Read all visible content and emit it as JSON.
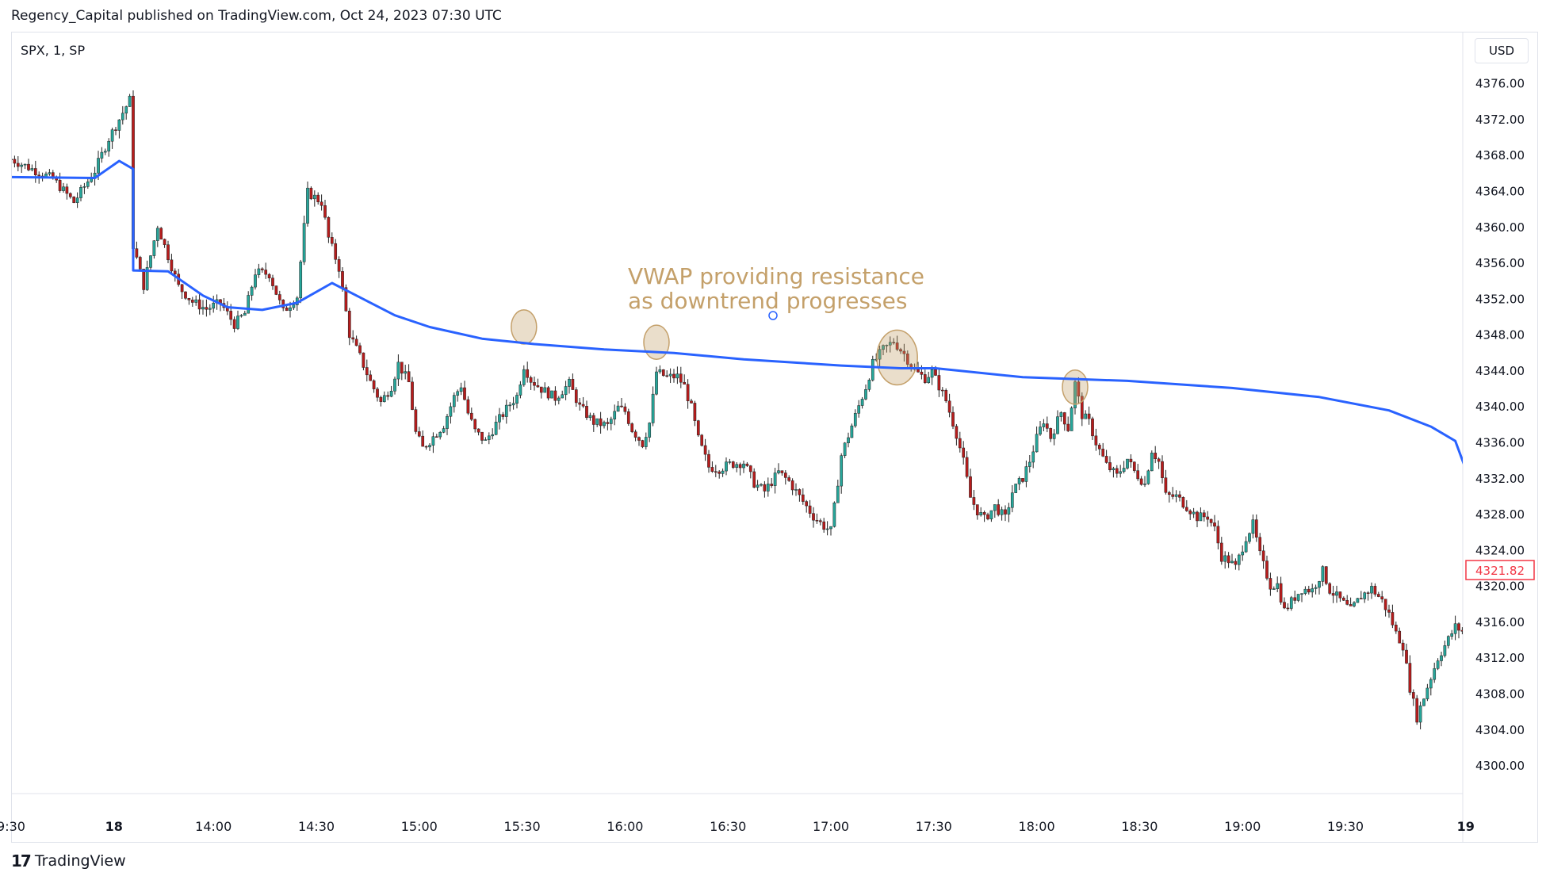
{
  "header": {
    "publisher_line": "Regency_Capital published on TradingView.com, Oct 24, 2023 07:30 UTC"
  },
  "symbol": "SPX, 1, SP",
  "currency": "USD",
  "footer": {
    "brand": "TradingView",
    "logo_icon": "tradingview-logo-icon"
  },
  "chart_data": {
    "type": "candlestick",
    "title": "",
    "price_ticks": [
      4376,
      4372,
      4368,
      4364,
      4360,
      4356,
      4352,
      4348,
      4344,
      4340,
      4336,
      4332,
      4328,
      4324,
      4320,
      4316,
      4312,
      4308,
      4304,
      4300
    ],
    "price_tick_labels": [
      "4376.00",
      "4372.00",
      "4368.00",
      "4364.00",
      "4360.00",
      "4356.00",
      "4352.00",
      "4348.00",
      "4344.00",
      "4340.00",
      "4336.00",
      "4332.00",
      "4328.00",
      "4324.00",
      "4320.00",
      "4316.00",
      "4312.00",
      "4308.00",
      "4304.00",
      "4300.00"
    ],
    "ylim": [
      4297.0,
      4381.8
    ],
    "time_ticks": [
      "9:30",
      "18",
      "14:00",
      "14:30",
      "15:00",
      "15:30",
      "16:00",
      "16:30",
      "17:00",
      "17:30",
      "18:00",
      "18:30",
      "19:00",
      "19:30",
      "19"
    ],
    "time_tick_slots": [
      0,
      29.5,
      58,
      87.5,
      117,
      146.5,
      176,
      205.5,
      235,
      264.5,
      294,
      323.5,
      353,
      382.5,
      417
    ],
    "last_price": 4321.82,
    "last_price_label": "4321.82",
    "colors": {
      "up": "#26a69a",
      "down": "#b71c1c",
      "vwap": "#2962ff",
      "annotation": "#c4a06a",
      "last_price": "#f23645"
    },
    "annotation": {
      "line1": "VWAP providing resistance",
      "line2": "as downtrend progresses"
    },
    "highlight_slots": [
      {
        "slot": 147,
        "price": 4348.9,
        "r": 1.0
      },
      {
        "slot": 185,
        "price": 4347.2,
        "r": 1.0
      },
      {
        "slot": 254,
        "price": 4345.5,
        "r": 1.6
      },
      {
        "slot": 305,
        "price": 4342.2,
        "r": 1.0
      }
    ],
    "vwap_path": [
      [
        0,
        4365.6
      ],
      [
        24,
        4365.5
      ],
      [
        31,
        4367.4
      ],
      [
        35,
        4366.5
      ],
      [
        35,
        4355.2
      ],
      [
        45,
        4355.1
      ],
      [
        55,
        4352.4
      ],
      [
        62,
        4351.1
      ],
      [
        72,
        4350.8
      ],
      [
        82,
        4351.6
      ],
      [
        92,
        4353.8
      ],
      [
        100,
        4352.2
      ],
      [
        110,
        4350.2
      ],
      [
        120,
        4348.9
      ],
      [
        135,
        4347.6
      ],
      [
        150,
        4347.0
      ],
      [
        170,
        4346.4
      ],
      [
        190,
        4346.0
      ],
      [
        210,
        4345.3
      ],
      [
        238,
        4344.6
      ],
      [
        255,
        4344.3
      ],
      [
        265,
        4344.3
      ],
      [
        290,
        4343.3
      ],
      [
        320,
        4342.9
      ],
      [
        350,
        4342.1
      ],
      [
        375,
        4341.1
      ],
      [
        395,
        4339.6
      ],
      [
        407,
        4337.8
      ],
      [
        414,
        4336.2
      ],
      [
        418,
        4332.0
      ],
      [
        419,
        4331.8
      ],
      [
        420,
        4321.0
      ],
      [
        423,
        4323.2
      ],
      [
        427,
        4323.0
      ]
    ],
    "price_path": [
      [
        0,
        4367.6
      ],
      [
        12,
        4365.4
      ],
      [
        18,
        4362.8
      ],
      [
        24,
        4366.3
      ],
      [
        28,
        4369.9
      ],
      [
        34,
        4374.2
      ],
      [
        35,
        4358.0
      ],
      [
        38,
        4353.5
      ],
      [
        42,
        4360.2
      ],
      [
        48,
        4353.4
      ],
      [
        52,
        4351.7
      ],
      [
        56,
        4350.9
      ],
      [
        60,
        4351.6
      ],
      [
        64,
        4349.2
      ],
      [
        67,
        4350.4
      ],
      [
        70,
        4355.0
      ],
      [
        74,
        4354.8
      ],
      [
        78,
        4350.6
      ],
      [
        82,
        4352.3
      ],
      [
        85,
        4363.9
      ],
      [
        89,
        4362.8
      ],
      [
        91,
        4358.8
      ],
      [
        94,
        4355.5
      ],
      [
        97,
        4348.1
      ],
      [
        100,
        4345.6
      ],
      [
        103,
        4342.8
      ],
      [
        106,
        4340.5
      ],
      [
        109,
        4342.3
      ],
      [
        111,
        4344.8
      ],
      [
        114,
        4342.7
      ],
      [
        116,
        4337.1
      ],
      [
        118,
        4335.4
      ],
      [
        120,
        4336.2
      ],
      [
        124,
        4338.0
      ],
      [
        127,
        4341.1
      ],
      [
        129,
        4342.4
      ],
      [
        131,
        4339.3
      ],
      [
        133,
        4337.3
      ],
      [
        136,
        4336.1
      ],
      [
        139,
        4338.1
      ],
      [
        143,
        4340.3
      ],
      [
        145,
        4341.2
      ],
      [
        147,
        4344.6
      ],
      [
        149,
        4343.0
      ],
      [
        152,
        4342.0
      ],
      [
        156,
        4341.0
      ],
      [
        160,
        4342.6
      ],
      [
        163,
        4340.0
      ],
      [
        167,
        4338.3
      ],
      [
        171,
        4337.9
      ],
      [
        174,
        4339.9
      ],
      [
        176,
        4339.5
      ],
      [
        178,
        4337.5
      ],
      [
        181,
        4335.9
      ],
      [
        183,
        4338.2
      ],
      [
        185,
        4343.9
      ],
      [
        188,
        4343.3
      ],
      [
        191,
        4343.4
      ],
      [
        193,
        4342.3
      ],
      [
        195,
        4339.9
      ],
      [
        197,
        4336.4
      ],
      [
        200,
        4333.3
      ],
      [
        203,
        4333.1
      ],
      [
        206,
        4333.6
      ],
      [
        210,
        4333.8
      ],
      [
        213,
        4331.5
      ],
      [
        216,
        4330.6
      ],
      [
        220,
        4332.7
      ],
      [
        223,
        4331.7
      ],
      [
        226,
        4330.0
      ],
      [
        230,
        4327.8
      ],
      [
        233,
        4326.7
      ],
      [
        235,
        4326.2
      ],
      [
        236,
        4328.8
      ],
      [
        238,
        4334.6
      ],
      [
        241,
        4337.9
      ],
      [
        243,
        4340.1
      ],
      [
        245,
        4342.2
      ],
      [
        247,
        4344.8
      ],
      [
        250,
        4346.4
      ],
      [
        253,
        4347.3
      ],
      [
        256,
        4345.9
      ],
      [
        259,
        4344.0
      ],
      [
        262,
        4343.2
      ],
      [
        264,
        4343.9
      ],
      [
        266,
        4342.3
      ],
      [
        268,
        4340.7
      ],
      [
        271,
        4337.0
      ],
      [
        273,
        4333.9
      ],
      [
        275,
        4329.9
      ],
      [
        277,
        4328.4
      ],
      [
        279,
        4327.5
      ],
      [
        282,
        4328.9
      ],
      [
        285,
        4327.6
      ],
      [
        287,
        4330.5
      ],
      [
        290,
        4332.1
      ],
      [
        292,
        4334.0
      ],
      [
        294,
        4336.5
      ],
      [
        296,
        4338.5
      ],
      [
        298,
        4336.6
      ],
      [
        301,
        4339.4
      ],
      [
        303,
        4337.6
      ],
      [
        305,
        4342.6
      ],
      [
        307,
        4339.1
      ],
      [
        309,
        4338.3
      ],
      [
        311,
        4336.0
      ],
      [
        314,
        4333.5
      ],
      [
        317,
        4332.3
      ],
      [
        320,
        4334.2
      ],
      [
        322,
        4332.8
      ],
      [
        325,
        4331.4
      ],
      [
        327,
        4335.2
      ],
      [
        329,
        4333.9
      ],
      [
        331,
        4330.1
      ],
      [
        334,
        4330.0
      ],
      [
        337,
        4328.9
      ],
      [
        340,
        4327.7
      ],
      [
        343,
        4327.8
      ],
      [
        345,
        4326.4
      ],
      [
        347,
        4323.3
      ],
      [
        349,
        4322.9
      ],
      [
        351,
        4322.1
      ],
      [
        354,
        4325.5
      ],
      [
        356,
        4326.9
      ],
      [
        358,
        4323.5
      ],
      [
        361,
        4320.1
      ],
      [
        363,
        4320.2
      ],
      [
        365,
        4317.3
      ],
      [
        368,
        4318.8
      ],
      [
        370,
        4319.7
      ],
      [
        373,
        4319.6
      ],
      [
        376,
        4321.7
      ],
      [
        378,
        4319.6
      ],
      [
        381,
        4318.5
      ],
      [
        384,
        4317.3
      ],
      [
        387,
        4318.9
      ],
      [
        390,
        4319.8
      ],
      [
        393,
        4318.4
      ],
      [
        395,
        4316.9
      ],
      [
        397,
        4314.8
      ],
      [
        399,
        4313.4
      ],
      [
        401,
        4308.7
      ],
      [
        403,
        4305.4
      ],
      [
        406,
        4308.8
      ],
      [
        409,
        4312.0
      ],
      [
        411,
        4313.4
      ],
      [
        414,
        4315.5
      ],
      [
        416,
        4315.0
      ],
      [
        418,
        4315.2
      ],
      [
        420,
        4323.4
      ],
      [
        421,
        4323.8
      ],
      [
        422,
        4322.6
      ],
      [
        423,
        4321.8
      ]
    ]
  }
}
